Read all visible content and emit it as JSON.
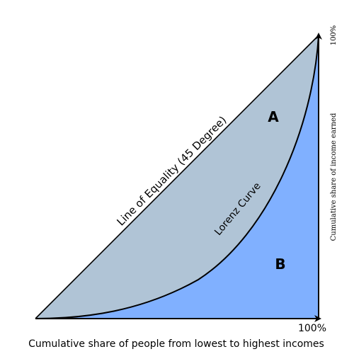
{
  "labels": {
    "line_of_equality": "Line of Equality (45 Degree)",
    "lorenz_curve": "Lorenz Curve",
    "area_a": "A",
    "area_b": "B",
    "x_axis_end": "100%",
    "y_axis_end": "100%",
    "x_axis_title": "Cumulative share of people from lowest to highest incomes",
    "y_axis_title": "Cumulative share of income earned"
  },
  "colors": {
    "area_a_fill": "#b0c4d6",
    "area_b_fill": "#80b0ff",
    "stroke": "#000000",
    "background": "#ffffff"
  }
}
